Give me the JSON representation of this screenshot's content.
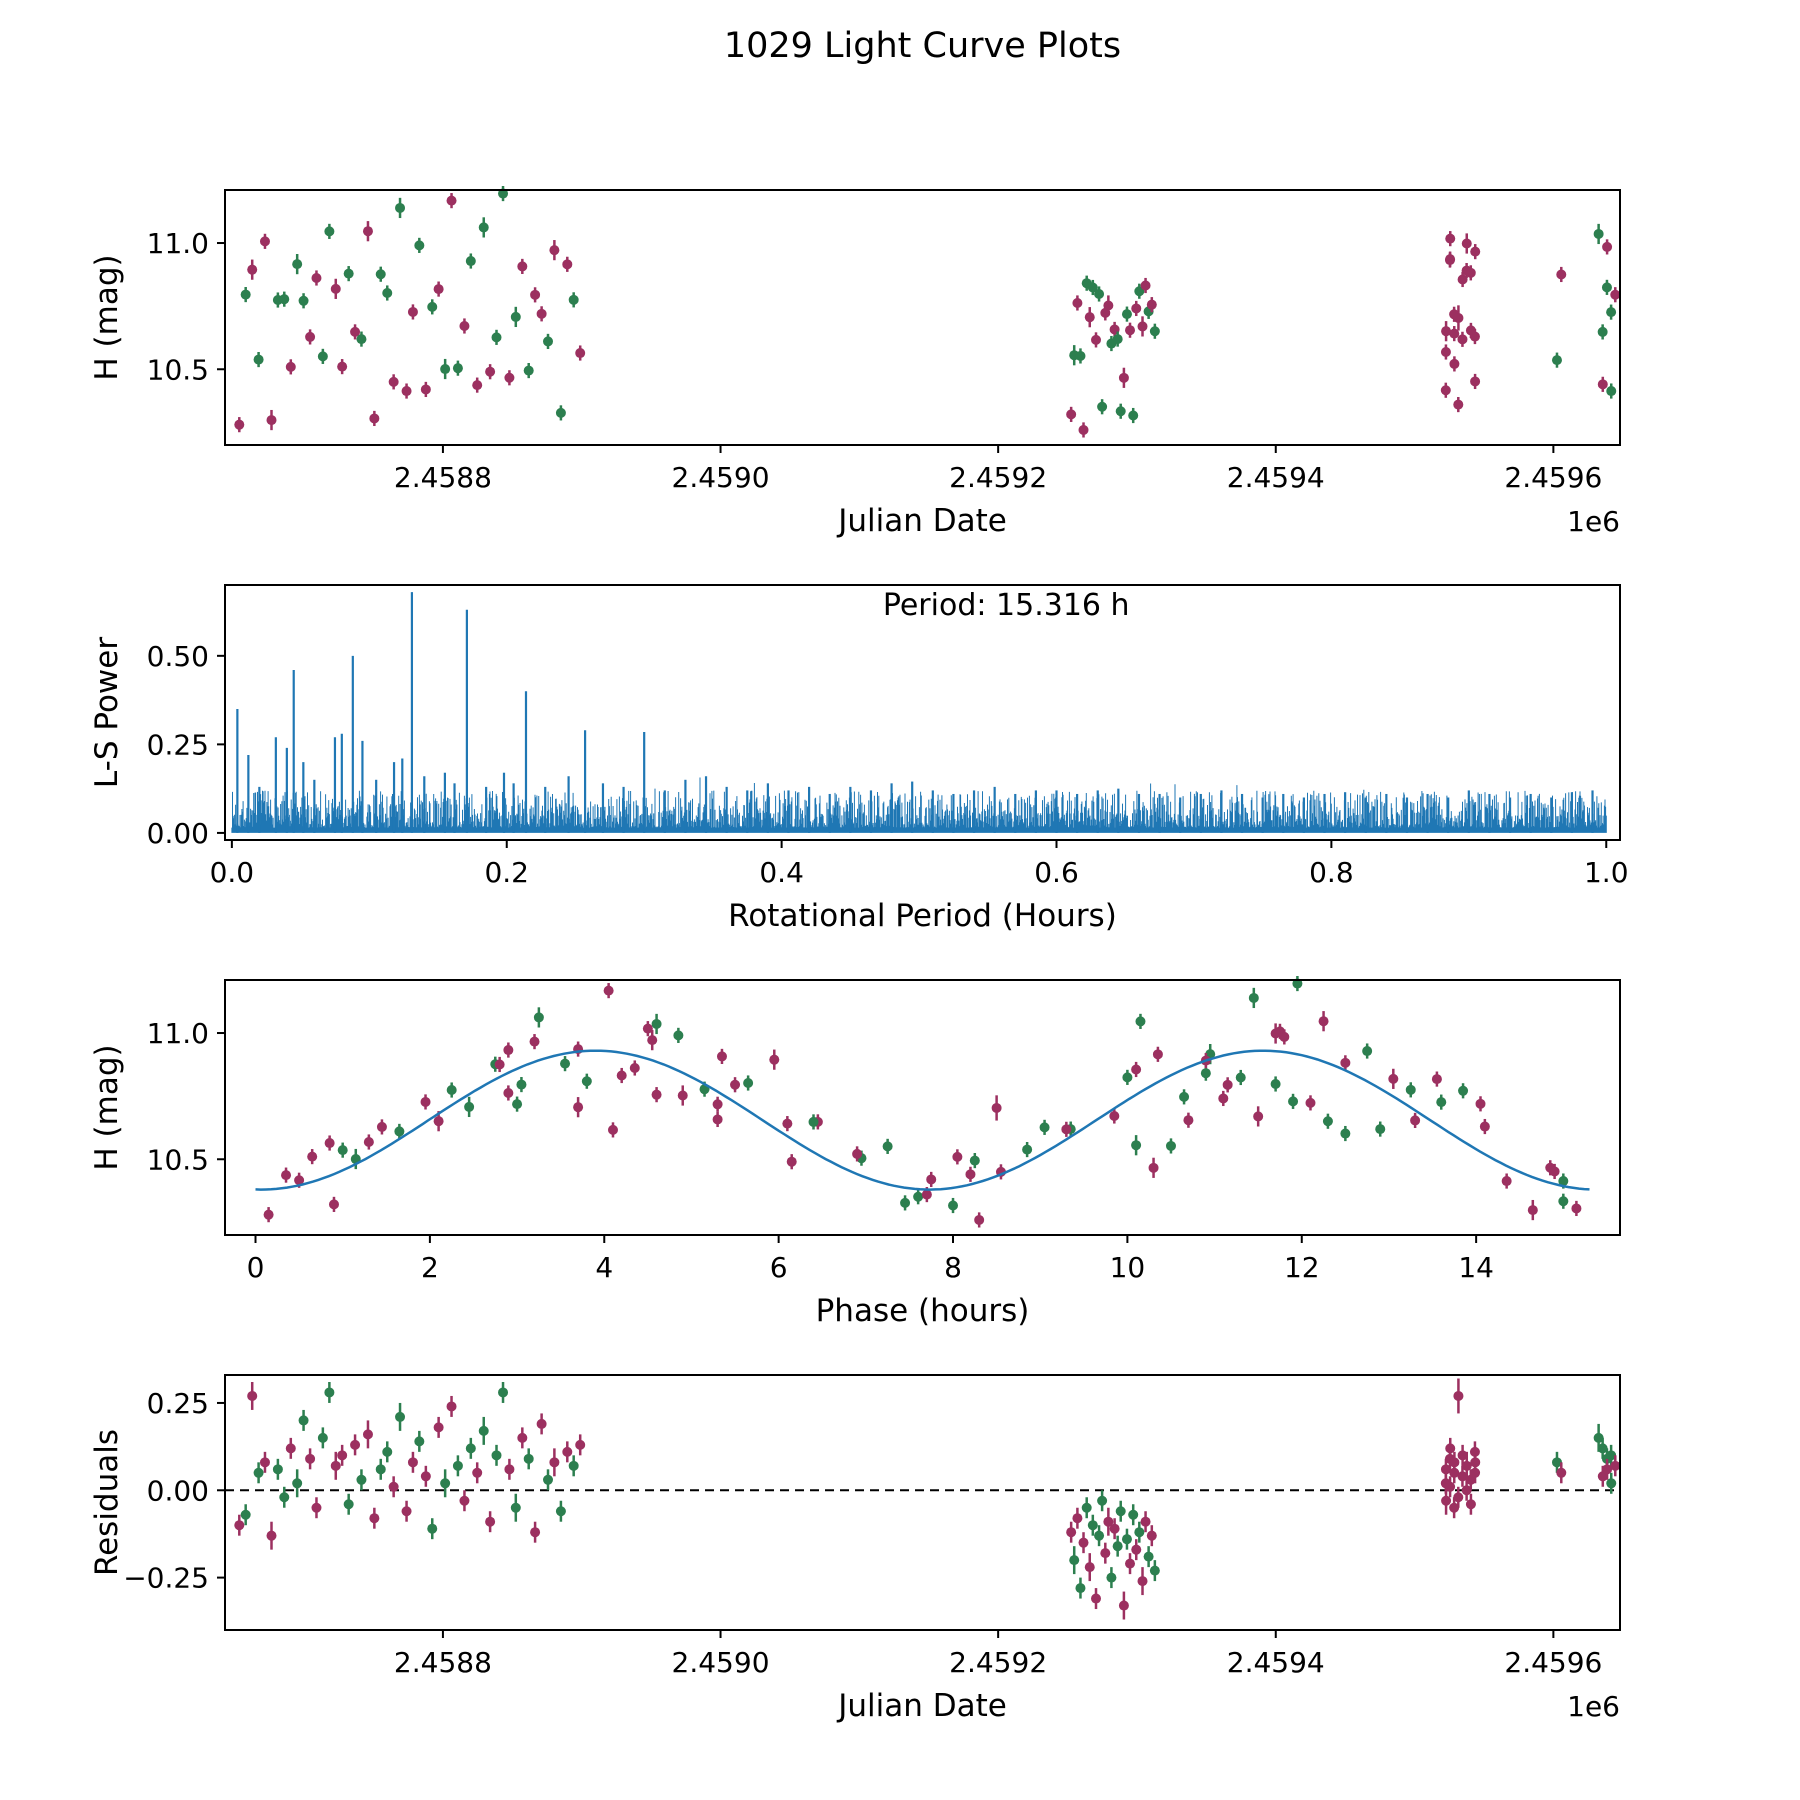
{
  "title": "1029 Light Curve Plots",
  "colors": {
    "green": "#2c7f4f",
    "purple": "#9c3060",
    "blue": "#1f77b4",
    "axis": "#000000"
  },
  "fit": {
    "mean": 10.655,
    "amplitude": 0.275,
    "period_hours": 7.658,
    "phase_at_max": 3.9
  },
  "chart_data": [
    {
      "id": "jd-magnitude",
      "type": "scatter",
      "xlabel": "Julian Date",
      "ylabel": "H (mag)",
      "offset_label": "1e6",
      "xlim": [
        2458643,
        2459648
      ],
      "ylim": [
        10.2,
        11.21
      ],
      "xticks": [
        [
          2458800,
          "2.4588"
        ],
        [
          2459000,
          "2.4590"
        ],
        [
          2459200,
          "2.4592"
        ],
        [
          2459400,
          "2.4594"
        ],
        [
          2459600,
          "2.4596"
        ]
      ],
      "yticks": [
        [
          10.5,
          "10.5"
        ],
        [
          11.0,
          "11.0"
        ]
      ],
      "x_field": "jd",
      "y_field": "mag"
    },
    {
      "id": "periodogram",
      "type": "line",
      "xlabel": "Rotational Period (Hours)",
      "ylabel": "L-S Power",
      "annotation": "Period: 15.316 h",
      "annotation_x_frac": 0.56,
      "xlim": [
        -0.005,
        1.01
      ],
      "ylim": [
        -0.02,
        0.7
      ],
      "xticks": [
        [
          0.0,
          "0.0"
        ],
        [
          0.2,
          "0.2"
        ],
        [
          0.4,
          "0.4"
        ],
        [
          0.6,
          "0.6"
        ],
        [
          0.8,
          "0.8"
        ],
        [
          1.0,
          "1.0"
        ]
      ],
      "yticks": [
        [
          0.0,
          "0.00"
        ],
        [
          0.25,
          "0.25"
        ],
        [
          0.5,
          "0.50"
        ]
      ]
    },
    {
      "id": "phase-fold",
      "type": "scatter+fit",
      "xlabel": "Phase (hours)",
      "ylabel": "H (mag)",
      "xlim": [
        -0.35,
        15.65
      ],
      "ylim": [
        10.2,
        11.21
      ],
      "xticks": [
        [
          0,
          "0"
        ],
        [
          2,
          "2"
        ],
        [
          4,
          "4"
        ],
        [
          6,
          "6"
        ],
        [
          8,
          "8"
        ],
        [
          10,
          "10"
        ],
        [
          12,
          "12"
        ],
        [
          14,
          "14"
        ]
      ],
      "yticks": [
        [
          10.5,
          "10.5"
        ],
        [
          11.0,
          "11.0"
        ]
      ],
      "x_field": "phase",
      "y_field": "mag",
      "fit_curve": true
    },
    {
      "id": "residuals",
      "type": "scatter",
      "xlabel": "Julian Date",
      "ylabel": "Residuals",
      "offset_label": "1e6",
      "zero_line": true,
      "xlim": [
        2458643,
        2459648
      ],
      "ylim": [
        -0.4,
        0.33
      ],
      "xticks": [
        [
          2458800,
          "2.4588"
        ],
        [
          2459000,
          "2.4590"
        ],
        [
          2459200,
          "2.4592"
        ],
        [
          2459400,
          "2.4594"
        ],
        [
          2459600,
          "2.4596"
        ]
      ],
      "yticks": [
        [
          -0.25,
          "−0.25"
        ],
        [
          0.0,
          "0.00"
        ],
        [
          0.25,
          "0.25"
        ]
      ],
      "x_field": "jd",
      "y_field": "res"
    }
  ],
  "observations": [
    [
      2458653.3,
      0.15,
      -0.1,
      0.03,
      1
    ],
    [
      2458657.9,
      3.05,
      -0.07,
      0.03,
      0
    ],
    [
      2458662.6,
      5.95,
      0.27,
      0.04,
      1
    ],
    [
      2458667.2,
      8.85,
      0.05,
      0.03,
      0
    ],
    [
      2458671.8,
      11.75,
      0.08,
      0.03,
      1
    ],
    [
      2458676.5,
      14.65,
      -0.13,
      0.04,
      1
    ],
    [
      2458681.1,
      2.25,
      0.06,
      0.03,
      0
    ],
    [
      2458685.7,
      5.15,
      -0.02,
      0.03,
      0
    ],
    [
      2458690.4,
      8.05,
      0.12,
      0.03,
      1
    ],
    [
      2458695.0,
      10.95,
      0.02,
      0.04,
      0
    ],
    [
      2458699.6,
      13.85,
      0.2,
      0.03,
      0
    ],
    [
      2458704.3,
      1.45,
      0.09,
      0.03,
      1
    ],
    [
      2458708.9,
      4.35,
      -0.05,
      0.03,
      1
    ],
    [
      2458713.5,
      7.25,
      0.15,
      0.03,
      0
    ],
    [
      2458718.2,
      10.15,
      0.28,
      0.03,
      0
    ],
    [
      2458722.8,
      13.05,
      0.07,
      0.04,
      1
    ],
    [
      2458727.4,
      0.65,
      0.1,
      0.03,
      1
    ],
    [
      2458732.1,
      3.55,
      -0.04,
      0.03,
      0
    ],
    [
      2458736.7,
      6.45,
      0.13,
      0.03,
      1
    ],
    [
      2458741.3,
      9.35,
      0.03,
      0.03,
      0
    ],
    [
      2458746.0,
      12.25,
      0.16,
      0.04,
      1
    ],
    [
      2458750.6,
      15.15,
      -0.08,
      0.03,
      1
    ],
    [
      2458755.2,
      2.75,
      0.06,
      0.03,
      0
    ],
    [
      2458759.9,
      5.65,
      0.11,
      0.03,
      0
    ],
    [
      2458764.5,
      8.55,
      0.01,
      0.03,
      1
    ],
    [
      2458769.1,
      11.45,
      0.21,
      0.04,
      0
    ],
    [
      2458773.8,
      14.35,
      -0.06,
      0.03,
      1
    ],
    [
      2458778.4,
      1.95,
      0.08,
      0.03,
      1
    ],
    [
      2458783.0,
      4.85,
      0.14,
      0.03,
      0
    ],
    [
      2458787.7,
      7.75,
      0.04,
      0.03,
      1
    ],
    [
      2458792.3,
      10.65,
      -0.11,
      0.03,
      0
    ],
    [
      2458796.9,
      13.55,
      0.18,
      0.03,
      1
    ],
    [
      2458801.6,
      1.15,
      0.02,
      0.04,
      0
    ],
    [
      2458806.2,
      4.05,
      0.24,
      0.03,
      1
    ],
    [
      2458810.8,
      6.95,
      0.07,
      0.03,
      0
    ],
    [
      2458815.5,
      9.85,
      -0.03,
      0.03,
      1
    ],
    [
      2458820.1,
      12.75,
      0.12,
      0.03,
      0
    ],
    [
      2458824.7,
      0.35,
      0.05,
      0.03,
      1
    ],
    [
      2458829.4,
      3.25,
      0.17,
      0.04,
      0
    ],
    [
      2458834.0,
      6.15,
      -0.09,
      0.03,
      1
    ],
    [
      2458838.6,
      9.05,
      0.1,
      0.03,
      0
    ],
    [
      2458843.3,
      11.95,
      0.28,
      0.03,
      0
    ],
    [
      2458847.9,
      14.85,
      0.06,
      0.03,
      1
    ],
    [
      2458852.5,
      2.45,
      -0.05,
      0.04,
      0
    ],
    [
      2458857.2,
      5.35,
      0.15,
      0.03,
      1
    ],
    [
      2458861.8,
      8.25,
      0.09,
      0.03,
      0
    ],
    [
      2458866.4,
      11.15,
      -0.12,
      0.03,
      1
    ],
    [
      2458871.1,
      14.05,
      0.19,
      0.03,
      1
    ],
    [
      2458875.7,
      1.65,
      0.03,
      0.03,
      0
    ],
    [
      2458880.3,
      4.55,
      0.08,
      0.04,
      1
    ],
    [
      2458885.0,
      7.45,
      -0.06,
      0.03,
      0
    ],
    [
      2458889.6,
      10.35,
      0.11,
      0.03,
      1
    ],
    [
      2458894.2,
      13.25,
      0.07,
      0.03,
      0
    ],
    [
      2458898.9,
      0.85,
      0.13,
      0.03,
      1
    ],
    [
      2459252.6,
      0.9,
      -0.12,
      0.03,
      1
    ],
    [
      2459254.8,
      10.1,
      -0.2,
      0.04,
      0
    ],
    [
      2459257.1,
      2.9,
      -0.08,
      0.03,
      1
    ],
    [
      2459259.3,
      10.5,
      -0.28,
      0.03,
      0
    ],
    [
      2459261.5,
      8.3,
      -0.15,
      0.03,
      1
    ],
    [
      2459263.8,
      10.9,
      -0.05,
      0.03,
      0
    ],
    [
      2459266.0,
      3.7,
      -0.22,
      0.04,
      1
    ],
    [
      2459268.2,
      11.3,
      -0.1,
      0.03,
      0
    ],
    [
      2459270.5,
      4.1,
      -0.31,
      0.03,
      1
    ],
    [
      2459272.7,
      11.7,
      -0.13,
      0.03,
      0
    ],
    [
      2459274.9,
      7.6,
      -0.03,
      0.03,
      0
    ],
    [
      2459277.2,
      12.1,
      -0.18,
      0.03,
      1
    ],
    [
      2459279.4,
      4.9,
      -0.09,
      0.04,
      1
    ],
    [
      2459281.6,
      12.5,
      -0.25,
      0.03,
      0
    ],
    [
      2459283.9,
      5.3,
      -0.11,
      0.03,
      1
    ],
    [
      2459286.1,
      12.9,
      -0.16,
      0.03,
      0
    ],
    [
      2459288.3,
      15.0,
      -0.06,
      0.03,
      0
    ],
    [
      2459290.6,
      10.3,
      -0.33,
      0.04,
      1
    ],
    [
      2459292.8,
      3.0,
      -0.14,
      0.03,
      0
    ],
    [
      2459295.0,
      10.7,
      -0.21,
      0.03,
      1
    ],
    [
      2459297.3,
      8.0,
      -0.07,
      0.03,
      0
    ],
    [
      2459299.5,
      11.1,
      -0.17,
      0.03,
      1
    ],
    [
      2459301.7,
      3.8,
      -0.12,
      0.03,
      0
    ],
    [
      2459304.0,
      11.5,
      -0.26,
      0.04,
      1
    ],
    [
      2459306.2,
      4.2,
      -0.09,
      0.03,
      1
    ],
    [
      2459308.4,
      11.9,
      -0.19,
      0.03,
      0
    ],
    [
      2459310.7,
      4.6,
      -0.13,
      0.03,
      1
    ],
    [
      2459312.9,
      12.3,
      -0.23,
      0.03,
      0
    ],
    [
      2459522.5,
      0.5,
      0.02,
      0.03,
      1
    ],
    [
      2459522.6,
      1.3,
      0.06,
      0.03,
      1
    ],
    [
      2459522.7,
      2.1,
      -0.03,
      0.04,
      1
    ],
    [
      2459525.5,
      2.9,
      0.09,
      0.03,
      1
    ],
    [
      2459525.6,
      3.7,
      0.01,
      0.03,
      1
    ],
    [
      2459525.7,
      4.5,
      0.12,
      0.03,
      1
    ],
    [
      2459528.5,
      5.3,
      -0.05,
      0.03,
      1
    ],
    [
      2459528.6,
      6.1,
      0.05,
      0.03,
      1
    ],
    [
      2459528.7,
      6.9,
      0.08,
      0.03,
      1
    ],
    [
      2459531.5,
      7.7,
      -0.02,
      0.03,
      1
    ],
    [
      2459531.6,
      8.5,
      0.27,
      0.05,
      1
    ],
    [
      2459534.5,
      9.3,
      0.04,
      0.03,
      1
    ],
    [
      2459534.6,
      10.1,
      0.1,
      0.03,
      1
    ],
    [
      2459537.5,
      10.9,
      0.0,
      0.03,
      1
    ],
    [
      2459537.6,
      11.7,
      0.07,
      0.04,
      1
    ],
    [
      2459540.5,
      12.5,
      0.03,
      0.03,
      1
    ],
    [
      2459540.6,
      13.3,
      -0.04,
      0.03,
      1
    ],
    [
      2459543.5,
      14.1,
      0.11,
      0.03,
      1
    ],
    [
      2459543.6,
      14.9,
      0.05,
      0.03,
      1
    ],
    [
      2459543.7,
      3.2,
      0.08,
      0.03,
      1
    ],
    [
      2459602.6,
      1.0,
      0.08,
      0.03,
      0
    ],
    [
      2459605.7,
      2.8,
      0.05,
      0.03,
      1
    ],
    [
      2459632.6,
      4.6,
      0.15,
      0.04,
      0
    ],
    [
      2459635.5,
      6.4,
      0.12,
      0.03,
      0
    ],
    [
      2459635.6,
      8.2,
      0.04,
      0.03,
      1
    ],
    [
      2459638.6,
      10.0,
      0.09,
      0.03,
      0
    ],
    [
      2459638.7,
      11.8,
      0.06,
      0.03,
      1
    ],
    [
      2459641.6,
      13.6,
      0.1,
      0.03,
      0
    ],
    [
      2459641.7,
      15.0,
      0.02,
      0.03,
      0
    ],
    [
      2459644.6,
      5.5,
      0.07,
      0.03,
      1
    ]
  ],
  "periodogram": {
    "peaks": [
      [
        0.004,
        0.35
      ],
      [
        0.012,
        0.22
      ],
      [
        0.02,
        0.13
      ],
      [
        0.032,
        0.27
      ],
      [
        0.04,
        0.24
      ],
      [
        0.045,
        0.46
      ],
      [
        0.052,
        0.2
      ],
      [
        0.06,
        0.15
      ],
      [
        0.075,
        0.27
      ],
      [
        0.08,
        0.28
      ],
      [
        0.088,
        0.5
      ],
      [
        0.095,
        0.26
      ],
      [
        0.105,
        0.15
      ],
      [
        0.118,
        0.2
      ],
      [
        0.124,
        0.21
      ],
      [
        0.131,
        0.68
      ],
      [
        0.14,
        0.16
      ],
      [
        0.155,
        0.17
      ],
      [
        0.162,
        0.14
      ],
      [
        0.171,
        0.63
      ],
      [
        0.185,
        0.13
      ],
      [
        0.198,
        0.17
      ],
      [
        0.205,
        0.14
      ],
      [
        0.214,
        0.4
      ],
      [
        0.228,
        0.13
      ],
      [
        0.245,
        0.16
      ],
      [
        0.257,
        0.29
      ],
      [
        0.27,
        0.14
      ],
      [
        0.285,
        0.13
      ],
      [
        0.3,
        0.285
      ],
      [
        0.315,
        0.12
      ],
      [
        0.33,
        0.15
      ],
      [
        0.345,
        0.16
      ],
      [
        0.36,
        0.13
      ],
      [
        0.375,
        0.12
      ],
      [
        0.39,
        0.14
      ],
      [
        0.405,
        0.12
      ],
      [
        0.42,
        0.13
      ],
      [
        0.435,
        0.11
      ],
      [
        0.45,
        0.13
      ],
      [
        0.465,
        0.12
      ],
      [
        0.48,
        0.14
      ],
      [
        0.495,
        0.145
      ],
      [
        0.51,
        0.12
      ],
      [
        0.525,
        0.11
      ],
      [
        0.54,
        0.12
      ],
      [
        0.555,
        0.13
      ],
      [
        0.57,
        0.11
      ],
      [
        0.585,
        0.12
      ],
      [
        0.6,
        0.12
      ],
      [
        0.615,
        0.11
      ],
      [
        0.63,
        0.12
      ],
      [
        0.645,
        0.125
      ],
      [
        0.66,
        0.11
      ],
      [
        0.675,
        0.11
      ],
      [
        0.69,
        0.1
      ],
      [
        0.705,
        0.11
      ],
      [
        0.72,
        0.12
      ],
      [
        0.735,
        0.11
      ],
      [
        0.75,
        0.1
      ],
      [
        0.765,
        0.11
      ],
      [
        0.78,
        0.1
      ],
      [
        0.795,
        0.11
      ],
      [
        0.81,
        0.115
      ],
      [
        0.825,
        0.1
      ],
      [
        0.84,
        0.11
      ],
      [
        0.855,
        0.1
      ],
      [
        0.87,
        0.11
      ],
      [
        0.885,
        0.1
      ],
      [
        0.9,
        0.12
      ],
      [
        0.915,
        0.11
      ],
      [
        0.93,
        0.1
      ],
      [
        0.945,
        0.11
      ],
      [
        0.96,
        0.1
      ],
      [
        0.975,
        0.115
      ],
      [
        0.99,
        0.12
      ]
    ],
    "noise": {
      "count": 2200,
      "seed": 7,
      "base": 0.015,
      "spread": 0.105
    }
  }
}
